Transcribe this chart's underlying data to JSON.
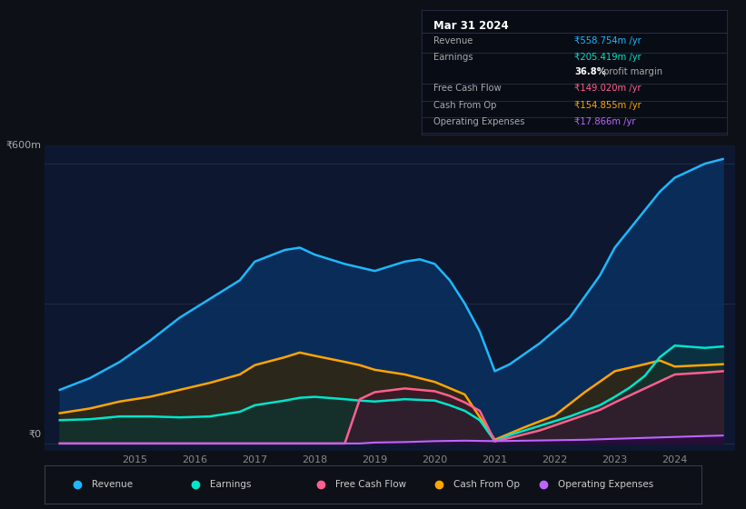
{
  "bg_color": "#0d1117",
  "plot_bg_color": "#0d1830",
  "grid_color": "#1e2d45",
  "info_box_bg": "#080c14",
  "xlim": [
    2013.5,
    2025.0
  ],
  "ylim": [
    -15,
    640
  ],
  "xticks": [
    2015,
    2016,
    2017,
    2018,
    2019,
    2020,
    2021,
    2022,
    2023,
    2024
  ],
  "ylabel_600": "₹600m",
  "ylabel_0": "₹0",
  "series": {
    "revenue": {
      "x": [
        2013.75,
        2014.25,
        2014.75,
        2015.25,
        2015.75,
        2016.25,
        2016.75,
        2017.0,
        2017.5,
        2017.75,
        2018.0,
        2018.5,
        2019.0,
        2019.5,
        2019.75,
        2020.0,
        2020.25,
        2020.5,
        2020.75,
        2021.0,
        2021.25,
        2021.75,
        2022.25,
        2022.75,
        2023.0,
        2023.25,
        2023.5,
        2023.75,
        2024.0,
        2024.5,
        2024.8
      ],
      "y": [
        115,
        140,
        175,
        220,
        270,
        310,
        350,
        390,
        415,
        420,
        405,
        385,
        370,
        390,
        395,
        385,
        350,
        300,
        240,
        155,
        170,
        215,
        270,
        360,
        420,
        460,
        500,
        540,
        570,
        600,
        610
      ],
      "line_color": "#1eb8ff",
      "fill_color": "#0a3060",
      "fill_alpha": 0.85,
      "lw": 1.8
    },
    "cash_from_op": {
      "x": [
        2013.75,
        2014.25,
        2014.75,
        2015.25,
        2015.75,
        2016.25,
        2016.75,
        2017.0,
        2017.5,
        2017.75,
        2018.0,
        2018.5,
        2018.75,
        2019.0,
        2019.5,
        2020.0,
        2020.5,
        2021.0,
        2021.5,
        2022.0,
        2022.5,
        2023.0,
        2023.5,
        2023.75,
        2024.0,
        2024.5,
        2024.8
      ],
      "y": [
        65,
        75,
        90,
        100,
        115,
        130,
        148,
        168,
        185,
        195,
        188,
        175,
        168,
        158,
        148,
        132,
        105,
        8,
        35,
        60,
        110,
        155,
        170,
        178,
        165,
        168,
        170
      ],
      "line_color": "#ffa500",
      "fill_color": "#3a2500",
      "fill_alpha": 0.7,
      "lw": 1.8
    },
    "earnings": {
      "x": [
        2013.75,
        2014.25,
        2014.75,
        2015.25,
        2015.75,
        2016.25,
        2016.75,
        2017.0,
        2017.5,
        2017.75,
        2018.0,
        2018.5,
        2018.75,
        2019.0,
        2019.5,
        2020.0,
        2020.25,
        2020.5,
        2020.75,
        2021.0,
        2021.25,
        2021.75,
        2022.25,
        2022.75,
        2023.0,
        2023.25,
        2023.5,
        2023.75,
        2024.0,
        2024.5,
        2024.8
      ],
      "y": [
        50,
        52,
        58,
        58,
        56,
        58,
        68,
        82,
        92,
        98,
        100,
        95,
        92,
        90,
        95,
        92,
        82,
        70,
        50,
        5,
        18,
        38,
        58,
        82,
        100,
        120,
        145,
        185,
        210,
        205,
        208
      ],
      "line_color": "#00e5cc",
      "fill_color": "#0a3535",
      "fill_alpha": 0.65,
      "lw": 1.8
    },
    "free_cash_flow": {
      "x": [
        2013.75,
        2014.25,
        2014.75,
        2015.25,
        2015.75,
        2016.25,
        2016.75,
        2017.0,
        2017.5,
        2018.0,
        2018.5,
        2018.75,
        2019.0,
        2019.5,
        2020.0,
        2020.25,
        2020.5,
        2020.75,
        2021.0,
        2021.25,
        2021.75,
        2022.25,
        2022.75,
        2023.0,
        2023.5,
        2024.0,
        2024.5,
        2024.8
      ],
      "y": [
        0,
        0,
        0,
        0,
        0,
        0,
        0,
        0,
        0,
        0,
        0,
        95,
        110,
        118,
        112,
        102,
        88,
        70,
        5,
        12,
        28,
        50,
        72,
        88,
        118,
        148,
        152,
        155
      ],
      "line_color": "#ff6090",
      "fill_color": "#4a1030",
      "fill_alpha": 0.5,
      "lw": 1.8
    },
    "operating_expenses": {
      "x": [
        2013.75,
        2018.75,
        2019.0,
        2019.5,
        2020.0,
        2020.5,
        2021.0,
        2021.5,
        2022.0,
        2022.5,
        2023.0,
        2023.5,
        2024.0,
        2024.5,
        2024.8
      ],
      "y": [
        0,
        0,
        2,
        3,
        5,
        6,
        5,
        6,
        7,
        8,
        10,
        12,
        14,
        16,
        17
      ],
      "line_color": "#bb66ff",
      "fill_color": "#220044",
      "fill_alpha": 0.5,
      "lw": 1.5
    }
  },
  "info_box": {
    "title": "Mar 31 2024",
    "rows": [
      {
        "label": "Revenue",
        "value": "₹558.754m /yr",
        "value_color": "#1eb8ff"
      },
      {
        "label": "Earnings",
        "value": "₹205.419m /yr",
        "value_color": "#00e5cc"
      },
      {
        "label": "",
        "value": "36.8%",
        "suffix": " profit margin",
        "value_color": "#ffffff",
        "bold": true
      },
      {
        "label": "Free Cash Flow",
        "value": "₹149.020m /yr",
        "value_color": "#ff6090"
      },
      {
        "label": "Cash From Op",
        "value": "₹154.855m /yr",
        "value_color": "#ffa500"
      },
      {
        "label": "Operating Expenses",
        "value": "₹17.866m /yr",
        "value_color": "#bb66ff"
      }
    ]
  },
  "legend": [
    {
      "label": "Revenue",
      "color": "#1eb8ff"
    },
    {
      "label": "Earnings",
      "color": "#00e5cc"
    },
    {
      "label": "Free Cash Flow",
      "color": "#ff6090"
    },
    {
      "label": "Cash From Op",
      "color": "#ffa500"
    },
    {
      "label": "Operating Expenses",
      "color": "#bb66ff"
    }
  ]
}
